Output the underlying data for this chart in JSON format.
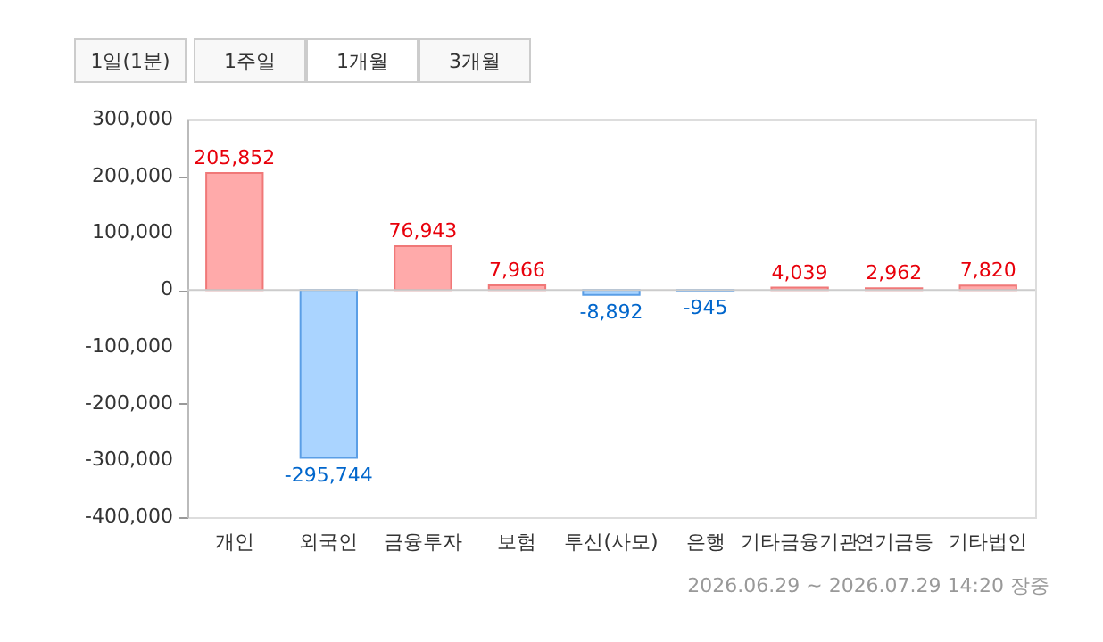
{
  "chart_data": {
    "type": "bar",
    "categories": [
      "개인",
      "외국인",
      "금융투자",
      "보험",
      "투신(사모)",
      "은행",
      "기타금융기관",
      "연기금등",
      "기타법인"
    ],
    "values": [
      205852,
      -295744,
      76943,
      7966,
      -8892,
      -945,
      4039,
      2962,
      7820
    ],
    "colors": [
      "#ffaaaa",
      "#aad4ff",
      "#ffaaaa",
      "#ffaaaa",
      "#aad4ff",
      "#aad4ff",
      "#ffaaaa",
      "#ffaaaa",
      "#ffaaaa"
    ],
    "ylim": [
      -400000,
      300000
    ],
    "yticks": [
      {
        "value": -400000,
        "label": "-400,000"
      },
      {
        "value": -300000,
        "label": "-300,000"
      },
      {
        "value": -200000,
        "label": "-200,000"
      },
      {
        "value": -100000,
        "label": "-100,000"
      },
      0,
      {
        "value": 100000,
        "label": "100,000"
      },
      {
        "value": 200000,
        "label": "200,000"
      },
      {
        "value": 300000,
        "label": "300,000"
      }
    ],
    "data_labels": true,
    "ref_lines": [
      {
        "axis": "y",
        "value": 0,
        "color": "#cccccc"
      }
    ],
    "value_labels": [
      "205,852",
      "-295,744",
      "76,943",
      "7,966",
      "-8,892",
      "-945",
      "4,039",
      "2,962",
      "7,820"
    ],
    "grid": false,
    "legend": false,
    "annotations": [
      "1일(1분)",
      "1주일",
      "1개월",
      "3개월",
      "2026.06.29 ~ 2026.07.29 14:20 장중"
    ]
  }
}
